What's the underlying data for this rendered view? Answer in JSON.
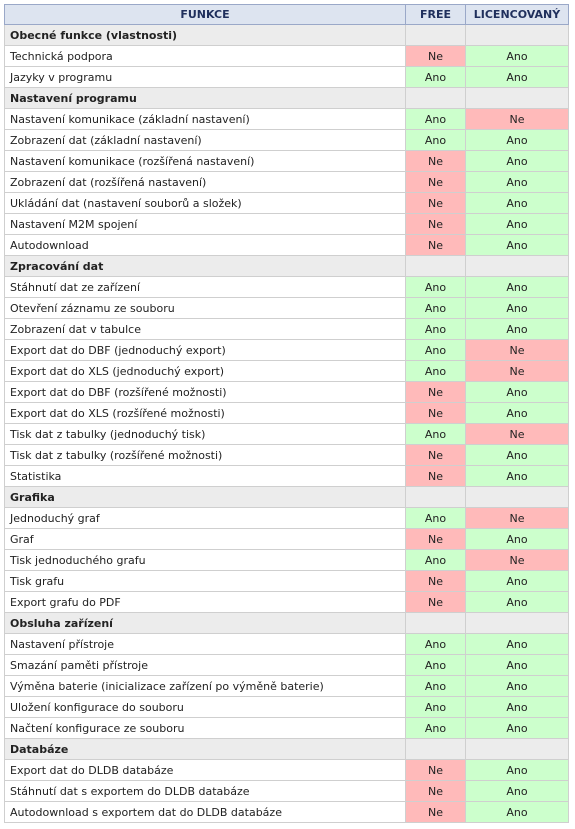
{
  "table": {
    "header": [
      "FUNKCE",
      "FREE",
      "LICENCOVANÝ"
    ],
    "colors": {
      "Ano": "#ccffcc",
      "Ne": "#ffbaba"
    },
    "sections": [
      {
        "title": "Obecné funkce (vlastnosti)",
        "rows": [
          [
            "Technická podpora",
            "Ne",
            "Ano"
          ],
          [
            "Jazyky v programu",
            "Ano",
            "Ano"
          ]
        ]
      },
      {
        "title": "Nastavení programu",
        "rows": [
          [
            "Nastavení komunikace (základní nastavení)",
            "Ano",
            "Ne"
          ],
          [
            "Zobrazení dat (základní nastavení)",
            "Ano",
            "Ano"
          ],
          [
            "Nastavení komunikace (rozšířená nastavení)",
            "Ne",
            "Ano"
          ],
          [
            "Zobrazení dat (rozšířená nastavení)",
            "Ne",
            "Ano"
          ],
          [
            "Ukládání dat (nastavení souborů a složek)",
            "Ne",
            "Ano"
          ],
          [
            "Nastavení M2M spojení",
            "Ne",
            "Ano"
          ],
          [
            "Autodownload",
            "Ne",
            "Ano"
          ]
        ]
      },
      {
        "title": "Zpracování dat",
        "rows": [
          [
            "Stáhnutí dat ze zařízení",
            "Ano",
            "Ano"
          ],
          [
            "Otevření záznamu ze souboru",
            "Ano",
            "Ano"
          ],
          [
            "Zobrazení dat v tabulce",
            "Ano",
            "Ano"
          ],
          [
            "Export dat do DBF (jednoduchý export)",
            "Ano",
            "Ne"
          ],
          [
            "Export dat do XLS (jednoduchý export)",
            "Ano",
            "Ne"
          ],
          [
            "Export dat do DBF (rozšířené možnosti)",
            "Ne",
            "Ano"
          ],
          [
            "Export dat do XLS (rozšířené možnosti)",
            "Ne",
            "Ano"
          ],
          [
            "Tisk dat z tabulky (jednoduchý tisk)",
            "Ano",
            "Ne"
          ],
          [
            "Tisk dat z tabulky (rozšířené možnosti)",
            "Ne",
            "Ano"
          ],
          [
            "Statistika",
            "Ne",
            "Ano"
          ]
        ]
      },
      {
        "title": "Grafika",
        "rows": [
          [
            "Jednoduchý graf",
            "Ano",
            "Ne"
          ],
          [
            "Graf",
            "Ne",
            "Ano"
          ],
          [
            "Tisk jednoduchého grafu",
            "Ano",
            "Ne"
          ],
          [
            "Tisk grafu",
            "Ne",
            "Ano"
          ],
          [
            "Export grafu do PDF",
            "Ne",
            "Ano"
          ]
        ]
      },
      {
        "title": "Obsluha zařízení",
        "rows": [
          [
            "Nastavení přístroje",
            "Ano",
            "Ano"
          ],
          [
            "Smazání paměti přístroje",
            "Ano",
            "Ano"
          ],
          [
            "Výměna baterie (inicializace zařízení po výměně baterie)",
            "Ano",
            "Ano"
          ],
          [
            "Uložení konfigurace do souboru",
            "Ano",
            "Ano"
          ],
          [
            "Načtení konfigurace ze souboru",
            "Ano",
            "Ano"
          ]
        ]
      },
      {
        "title": "Databáze",
        "rows": [
          [
            "Export dat do DLDB databáze",
            "Ne",
            "Ano"
          ],
          [
            "Stáhnutí dat s exportem do DLDB databáze",
            "Ne",
            "Ano"
          ],
          [
            "Autodownload s exportem dat do DLDB databáze",
            "Ne",
            "Ano"
          ]
        ]
      }
    ]
  }
}
